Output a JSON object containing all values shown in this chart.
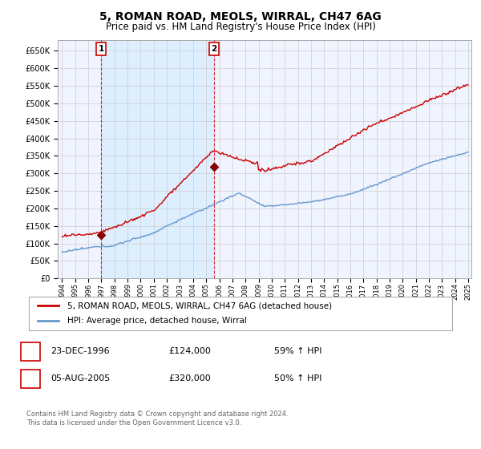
{
  "title": "5, ROMAN ROAD, MEOLS, WIRRAL, CH47 6AG",
  "subtitle": "Price paid vs. HM Land Registry's House Price Index (HPI)",
  "title_fontsize": 10,
  "subtitle_fontsize": 8.5,
  "ylim": [
    0,
    680000
  ],
  "yticks": [
    0,
    50000,
    100000,
    150000,
    200000,
    250000,
    300000,
    350000,
    400000,
    450000,
    500000,
    550000,
    600000,
    650000
  ],
  "ytick_labels": [
    "£0",
    "£50K",
    "£100K",
    "£150K",
    "£200K",
    "£250K",
    "£300K",
    "£350K",
    "£400K",
    "£450K",
    "£500K",
    "£550K",
    "£600K",
    "£650K"
  ],
  "sale1_date": "1996-12-23",
  "sale1_price": 124000,
  "sale1_label": "1",
  "sale2_date": "2005-08-05",
  "sale2_price": 320000,
  "sale2_label": "2",
  "hpi_color": "#6699cc",
  "price_color": "#cc0000",
  "sale_marker_color": "#880000",
  "vline_color": "#cc0000",
  "shade_color": "#ddeeff",
  "legend_label_price": "5, ROMAN ROAD, MEOLS, WIRRAL, CH47 6AG (detached house)",
  "legend_label_hpi": "HPI: Average price, detached house, Wirral",
  "table_row1": [
    "1",
    "23-DEC-1996",
    "£124,000",
    "59% ↑ HPI"
  ],
  "table_row2": [
    "2",
    "05-AUG-2005",
    "£320,000",
    "50% ↑ HPI"
  ],
  "footer": "Contains HM Land Registry data © Crown copyright and database right 2024.\nThis data is licensed under the Open Government Licence v3.0.",
  "background_color": "#ffffff",
  "grid_color": "#cccccc",
  "plot_bg_color": "#f0f4ff"
}
